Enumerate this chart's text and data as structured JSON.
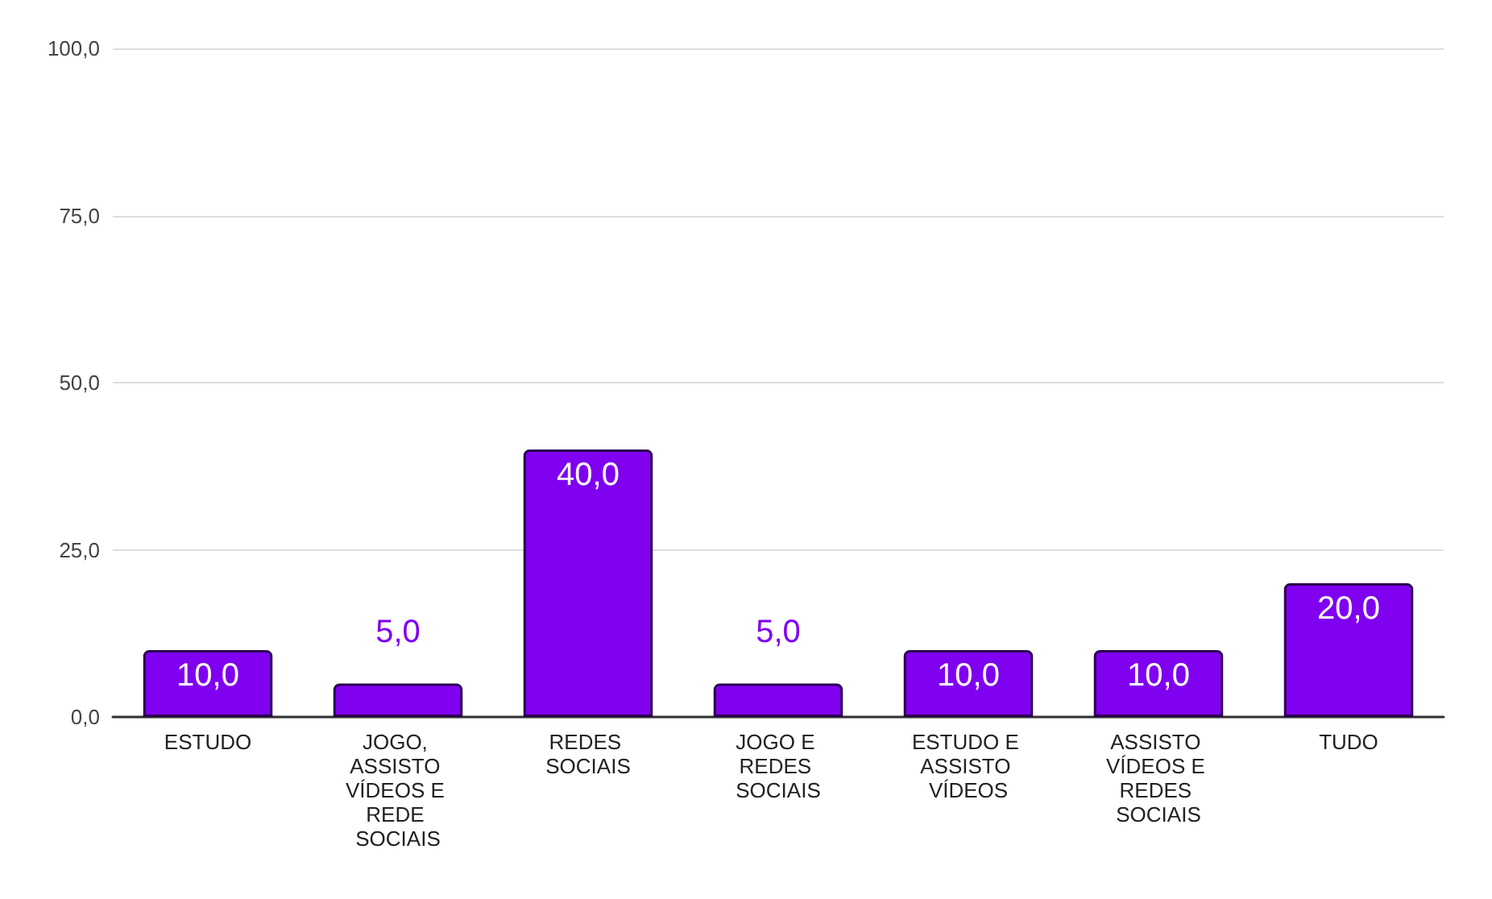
{
  "chart_data": {
    "type": "bar",
    "categories": [
      "ESTUDO",
      "JOGO, ASSISTO VÍDEOS E REDE SOCIAIS",
      "REDES SOCIAIS",
      "JOGO E REDES SOCIAIS",
      "ESTUDO E ASSISTO VÍDEOS",
      "ASSISTO VÍDEOS E REDES SOCIAIS",
      "TUDO"
    ],
    "values": [
      10,
      5,
      40,
      5,
      10,
      10,
      20
    ],
    "value_labels": [
      "10,0",
      "5,0",
      "40,0",
      "5,0",
      "10,0",
      "10,0",
      "20,0"
    ],
    "color": "#8000f0",
    "ylim": [
      0,
      100
    ],
    "yticks": [
      {
        "value": 0,
        "label": "0,0"
      },
      {
        "value": 25,
        "label": "25,0"
      },
      {
        "value": 50,
        "label": "50,0"
      },
      {
        "value": 75,
        "label": "75,0"
      },
      {
        "value": 100,
        "label": "100,0"
      }
    ],
    "grid": "y"
  }
}
